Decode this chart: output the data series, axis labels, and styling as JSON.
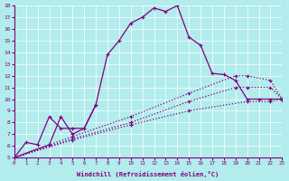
{
  "xlabel": "Windchill (Refroidissement éolien,°C)",
  "background_color": "#b2ecec",
  "line_color": "#800080",
  "xlim": [
    0,
    23
  ],
  "ylim": [
    5,
    18
  ],
  "xticks": [
    0,
    1,
    2,
    3,
    4,
    5,
    6,
    7,
    8,
    9,
    10,
    11,
    12,
    13,
    14,
    15,
    16,
    17,
    18,
    19,
    20,
    21,
    22,
    23
  ],
  "yticks": [
    5,
    6,
    7,
    8,
    9,
    10,
    11,
    12,
    13,
    14,
    15,
    16,
    17,
    18
  ],
  "curve1_x": [
    0,
    1,
    2,
    3,
    4,
    5,
    6,
    7,
    8,
    9,
    10,
    11,
    12,
    13,
    14,
    15,
    16,
    17,
    18,
    19,
    20,
    21,
    22,
    23
  ],
  "curve1_y": [
    5.0,
    6.3,
    6.1,
    8.5,
    7.5,
    7.5,
    7.5,
    9.5,
    13.8,
    15.0,
    16.5,
    17.0,
    17.8,
    17.5,
    18.0,
    15.3,
    14.6,
    12.2,
    12.1,
    11.6,
    10.0,
    10.0,
    10.0,
    10.0
  ],
  "curve2_x": [
    0,
    3,
    4,
    5,
    6,
    7
  ],
  "curve2_y": [
    5.0,
    6.1,
    8.5,
    7.0,
    7.5,
    9.5
  ],
  "curve3_x": [
    0,
    5,
    10,
    15,
    20,
    22,
    23
  ],
  "curve3_y": [
    5.0,
    6.5,
    7.8,
    9.0,
    9.8,
    9.8,
    10.0
  ],
  "curve4_x": [
    0,
    5,
    10,
    15,
    19,
    20,
    22,
    23
  ],
  "curve4_y": [
    5.0,
    6.6,
    8.0,
    9.8,
    11.0,
    11.0,
    11.0,
    10.0
  ],
  "curve5_x": [
    0,
    5,
    10,
    15,
    19,
    20,
    22,
    23
  ],
  "curve5_y": [
    5.0,
    6.8,
    8.5,
    10.5,
    12.0,
    12.0,
    11.6,
    10.0
  ]
}
